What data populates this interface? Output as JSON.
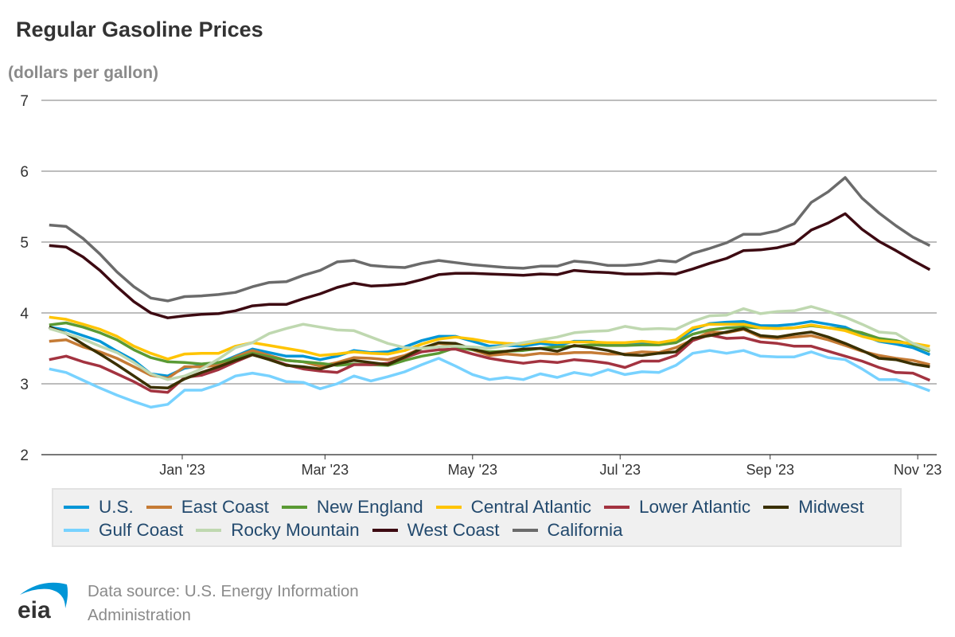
{
  "chart_data": {
    "type": "line",
    "title": "Regular Gasoline Prices",
    "ylabel": "(dollars per gallon)",
    "xlabel": "",
    "ylim": [
      2,
      7
    ],
    "yticks": [
      "2",
      "3",
      "4",
      "5",
      "6",
      "7"
    ],
    "xticks": [
      {
        "label": "Jan '23",
        "date": "2023-01-01"
      },
      {
        "label": "Mar '23",
        "date": "2023-03-01"
      },
      {
        "label": "May '23",
        "date": "2023-05-01"
      },
      {
        "label": "Jul '23",
        "date": "2023-07-01"
      },
      {
        "label": "Sep '23",
        "date": "2023-09-01"
      },
      {
        "label": "Nov '23",
        "date": "2023-11-01"
      }
    ],
    "grid": true,
    "legend": "bottom",
    "x": [
      "2022-11-07",
      "2022-11-14",
      "2022-11-21",
      "2022-11-28",
      "2022-12-05",
      "2022-12-12",
      "2022-12-19",
      "2022-12-26",
      "2023-01-02",
      "2023-01-09",
      "2023-01-16",
      "2023-01-23",
      "2023-01-30",
      "2023-02-06",
      "2023-02-13",
      "2023-02-20",
      "2023-02-27",
      "2023-03-06",
      "2023-03-13",
      "2023-03-20",
      "2023-03-27",
      "2023-04-03",
      "2023-04-10",
      "2023-04-17",
      "2023-04-24",
      "2023-05-01",
      "2023-05-08",
      "2023-05-15",
      "2023-05-22",
      "2023-05-29",
      "2023-06-05",
      "2023-06-12",
      "2023-06-19",
      "2023-06-26",
      "2023-07-03",
      "2023-07-10",
      "2023-07-17",
      "2023-07-24",
      "2023-07-31",
      "2023-08-07",
      "2023-08-14",
      "2023-08-21",
      "2023-08-28",
      "2023-09-04",
      "2023-09-11",
      "2023-09-18",
      "2023-09-25",
      "2023-10-02",
      "2023-10-09",
      "2023-10-16",
      "2023-10-23",
      "2023-10-30",
      "2023-11-06"
    ],
    "series": [
      {
        "name": "U.S.",
        "color": "#0096d7",
        "values": [
          3.8,
          3.76,
          3.68,
          3.6,
          3.46,
          3.33,
          3.14,
          3.11,
          3.22,
          3.26,
          3.29,
          3.39,
          3.49,
          3.44,
          3.39,
          3.39,
          3.34,
          3.39,
          3.47,
          3.44,
          3.45,
          3.52,
          3.61,
          3.67,
          3.67,
          3.6,
          3.53,
          3.54,
          3.53,
          3.57,
          3.54,
          3.6,
          3.6,
          3.56,
          3.55,
          3.57,
          3.56,
          3.6,
          3.76,
          3.85,
          3.87,
          3.88,
          3.82,
          3.82,
          3.84,
          3.88,
          3.84,
          3.8,
          3.69,
          3.6,
          3.56,
          3.51,
          3.41
        ]
      },
      {
        "name": "East Coast",
        "color": "#c57b35",
        "values": [
          3.6,
          3.62,
          3.52,
          3.45,
          3.36,
          3.24,
          3.12,
          3.08,
          3.24,
          3.24,
          3.26,
          3.38,
          3.47,
          3.4,
          3.33,
          3.31,
          3.25,
          3.3,
          3.37,
          3.36,
          3.34,
          3.4,
          3.5,
          3.57,
          3.55,
          3.48,
          3.4,
          3.42,
          3.4,
          3.43,
          3.42,
          3.44,
          3.44,
          3.42,
          3.42,
          3.45,
          3.44,
          3.51,
          3.62,
          3.73,
          3.72,
          3.77,
          3.66,
          3.64,
          3.66,
          3.68,
          3.62,
          3.54,
          3.46,
          3.4,
          3.36,
          3.33,
          3.27
        ]
      },
      {
        "name": "New England",
        "color": "#5a9a34",
        "values": [
          3.83,
          3.86,
          3.8,
          3.72,
          3.62,
          3.48,
          3.37,
          3.31,
          3.3,
          3.28,
          3.3,
          3.36,
          3.43,
          3.38,
          3.33,
          3.31,
          3.29,
          3.26,
          3.28,
          3.27,
          3.26,
          3.33,
          3.39,
          3.43,
          3.51,
          3.48,
          3.45,
          3.46,
          3.47,
          3.5,
          3.52,
          3.53,
          3.55,
          3.54,
          3.54,
          3.55,
          3.55,
          3.58,
          3.7,
          3.76,
          3.79,
          3.8,
          3.79,
          3.78,
          3.79,
          3.82,
          3.79,
          3.77,
          3.72,
          3.64,
          3.61,
          3.55,
          3.46
        ]
      },
      {
        "name": "Central Atlantic",
        "color": "#ffc400",
        "values": [
          3.94,
          3.91,
          3.84,
          3.77,
          3.67,
          3.53,
          3.43,
          3.35,
          3.42,
          3.43,
          3.43,
          3.53,
          3.58,
          3.54,
          3.5,
          3.46,
          3.4,
          3.42,
          3.45,
          3.43,
          3.42,
          3.47,
          3.56,
          3.63,
          3.66,
          3.63,
          3.59,
          3.57,
          3.56,
          3.6,
          3.58,
          3.59,
          3.59,
          3.58,
          3.58,
          3.6,
          3.58,
          3.62,
          3.79,
          3.84,
          3.84,
          3.84,
          3.79,
          3.78,
          3.79,
          3.83,
          3.79,
          3.75,
          3.67,
          3.61,
          3.59,
          3.57,
          3.53
        ]
      },
      {
        "name": "Lower Atlantic",
        "color": "#a33340",
        "values": [
          3.34,
          3.39,
          3.31,
          3.25,
          3.14,
          3.03,
          2.9,
          2.88,
          3.09,
          3.12,
          3.2,
          3.31,
          3.41,
          3.35,
          3.27,
          3.21,
          3.18,
          3.16,
          3.27,
          3.27,
          3.29,
          3.37,
          3.45,
          3.48,
          3.49,
          3.42,
          3.36,
          3.32,
          3.29,
          3.32,
          3.3,
          3.34,
          3.32,
          3.29,
          3.23,
          3.32,
          3.32,
          3.4,
          3.61,
          3.69,
          3.64,
          3.65,
          3.59,
          3.57,
          3.53,
          3.53,
          3.46,
          3.39,
          3.32,
          3.23,
          3.16,
          3.15,
          3.05
        ]
      },
      {
        "name": "Midwest",
        "color": "#3a3000",
        "values": [
          3.8,
          3.71,
          3.56,
          3.42,
          3.27,
          3.11,
          2.95,
          2.94,
          3.07,
          3.16,
          3.24,
          3.33,
          3.41,
          3.34,
          3.26,
          3.24,
          3.21,
          3.28,
          3.33,
          3.3,
          3.27,
          3.38,
          3.5,
          3.58,
          3.57,
          3.49,
          3.43,
          3.46,
          3.49,
          3.5,
          3.46,
          3.54,
          3.51,
          3.47,
          3.41,
          3.4,
          3.43,
          3.45,
          3.64,
          3.68,
          3.73,
          3.78,
          3.68,
          3.66,
          3.7,
          3.73,
          3.66,
          3.57,
          3.47,
          3.36,
          3.34,
          3.28,
          3.24
        ]
      },
      {
        "name": "Gulf Coast",
        "color": "#78d2ff",
        "values": [
          3.21,
          3.16,
          3.05,
          2.94,
          2.84,
          2.75,
          2.67,
          2.71,
          2.91,
          2.91,
          2.99,
          3.11,
          3.15,
          3.11,
          3.03,
          3.02,
          2.93,
          3.0,
          3.11,
          3.04,
          3.1,
          3.17,
          3.27,
          3.36,
          3.25,
          3.13,
          3.06,
          3.09,
          3.06,
          3.14,
          3.09,
          3.16,
          3.12,
          3.2,
          3.13,
          3.17,
          3.16,
          3.26,
          3.43,
          3.47,
          3.43,
          3.47,
          3.39,
          3.38,
          3.38,
          3.45,
          3.37,
          3.34,
          3.21,
          3.06,
          3.06,
          2.99,
          2.9
        ]
      },
      {
        "name": "Rocky Mountain",
        "color": "#bfd8b0",
        "values": [
          3.78,
          3.71,
          3.63,
          3.53,
          3.44,
          3.3,
          3.14,
          3.06,
          3.11,
          3.21,
          3.35,
          3.51,
          3.58,
          3.71,
          3.78,
          3.84,
          3.8,
          3.76,
          3.75,
          3.66,
          3.57,
          3.51,
          3.5,
          3.52,
          3.53,
          3.52,
          3.5,
          3.54,
          3.58,
          3.62,
          3.66,
          3.72,
          3.74,
          3.75,
          3.81,
          3.77,
          3.78,
          3.77,
          3.88,
          3.96,
          3.97,
          4.06,
          3.99,
          4.02,
          4.03,
          4.09,
          4.02,
          3.94,
          3.84,
          3.73,
          3.71,
          3.57,
          3.48
        ]
      },
      {
        "name": "West Coast",
        "color": "#3d0a12",
        "values": [
          4.95,
          4.93,
          4.79,
          4.6,
          4.37,
          4.16,
          4.0,
          3.93,
          3.96,
          3.98,
          3.99,
          4.03,
          4.1,
          4.12,
          4.12,
          4.2,
          4.27,
          4.36,
          4.42,
          4.38,
          4.39,
          4.41,
          4.47,
          4.54,
          4.56,
          4.56,
          4.55,
          4.54,
          4.53,
          4.55,
          4.54,
          4.6,
          4.58,
          4.57,
          4.55,
          4.55,
          4.56,
          4.55,
          4.62,
          4.7,
          4.77,
          4.88,
          4.89,
          4.92,
          4.98,
          5.17,
          5.27,
          5.4,
          5.18,
          5.01,
          4.88,
          4.74,
          4.61
        ]
      },
      {
        "name": "California",
        "color": "#6b6b6b",
        "values": [
          5.24,
          5.22,
          5.05,
          4.83,
          4.58,
          4.37,
          4.21,
          4.17,
          4.23,
          4.24,
          4.26,
          4.29,
          4.37,
          4.43,
          4.44,
          4.53,
          4.6,
          4.72,
          4.74,
          4.67,
          4.65,
          4.64,
          4.7,
          4.74,
          4.71,
          4.68,
          4.66,
          4.64,
          4.63,
          4.66,
          4.66,
          4.73,
          4.71,
          4.67,
          4.67,
          4.69,
          4.74,
          4.72,
          4.84,
          4.91,
          4.99,
          5.11,
          5.11,
          5.16,
          5.26,
          5.56,
          5.71,
          5.91,
          5.62,
          5.41,
          5.23,
          5.07,
          4.95
        ]
      }
    ]
  },
  "source": {
    "text": "Data source: U.S. Energy Information Administration",
    "logo_text": "eia",
    "logo_color": "#0096d7"
  }
}
